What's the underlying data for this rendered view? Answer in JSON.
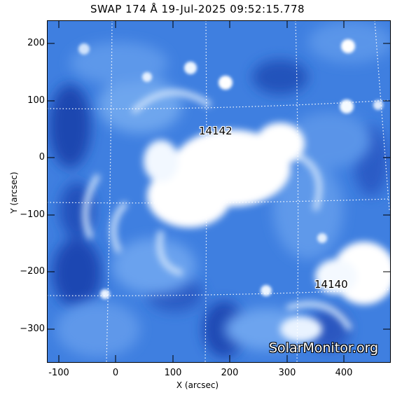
{
  "image": {
    "title": "SWAP 174 Å 19-Jul-2025 09:52:15.778",
    "x_axis": {
      "label": "X (arcsec)",
      "ticks": [
        "-100",
        "0",
        "100",
        "200",
        "300",
        "400"
      ]
    },
    "y_axis": {
      "label": "Y (arcsec)",
      "ticks": [
        "200",
        "100",
        "0",
        "−100",
        "−200",
        "−300"
      ]
    },
    "active_regions": [
      {
        "label": "14142"
      },
      {
        "label": "14140"
      }
    ],
    "watermark": "SolarMonitor.org",
    "colors": {
      "background": "#ffffff",
      "sun_dark": "#1f4fb8",
      "sun_mid": "#4f8ee6",
      "sun_bright": "#ffffff",
      "grid": "#ffffff"
    }
  }
}
